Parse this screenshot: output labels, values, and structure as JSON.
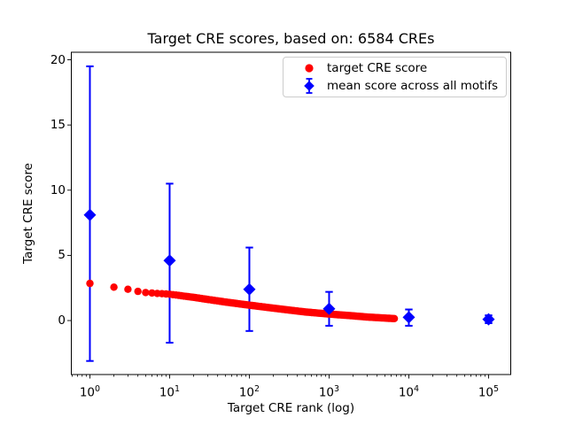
{
  "figure": {
    "background": "#ffffff",
    "text_color": "#000000"
  },
  "chart_data": {
    "type": "scatter",
    "title": "Target CRE scores, based on: 6584 CREs",
    "xlabel": "Target CRE rank (log)",
    "ylabel": "Target CRE score",
    "x_scale": "log",
    "grid": false,
    "n_cres": 6584,
    "xlim_log10": [
      -0.233,
      5.278
    ],
    "ylim": [
      -4.14,
      20.58
    ],
    "y_ticks": [
      0,
      5,
      10,
      15,
      20
    ],
    "x_tick_labels": [
      {
        "base": "10",
        "exp": "0"
      },
      {
        "base": "10",
        "exp": "1"
      },
      {
        "base": "10",
        "exp": "2"
      },
      {
        "base": "10",
        "exp": "3"
      },
      {
        "base": "10",
        "exp": "4"
      },
      {
        "base": "10",
        "exp": "5"
      }
    ],
    "legend": {
      "position": "upper right",
      "entries": [
        "target CRE score",
        "mean score across all motifs"
      ]
    },
    "series": [
      {
        "name": "target CRE score",
        "marker": "circle",
        "color": "#ff0000",
        "n_points": 6584,
        "points_log_anchors": [
          [
            1,
            2.85
          ],
          [
            2,
            2.56
          ],
          [
            3,
            2.4
          ],
          [
            4,
            2.24
          ],
          [
            5,
            2.15
          ],
          [
            7,
            2.08
          ],
          [
            10,
            2.02
          ],
          [
            20,
            1.78
          ],
          [
            30,
            1.62
          ],
          [
            50,
            1.42
          ],
          [
            100,
            1.18
          ],
          [
            200,
            0.95
          ],
          [
            300,
            0.82
          ],
          [
            500,
            0.66
          ],
          [
            1000,
            0.5
          ],
          [
            2000,
            0.36
          ],
          [
            3000,
            0.27
          ],
          [
            5000,
            0.19
          ],
          [
            6584,
            0.15
          ]
        ]
      },
      {
        "name": "mean score across all motifs",
        "marker": "diamond",
        "color": "#0000ff",
        "points": [
          {
            "x": 1,
            "y": 8.1,
            "lo": -3.1,
            "hi": 19.5
          },
          {
            "x": 10,
            "y": 4.6,
            "lo": -1.7,
            "hi": 10.5
          },
          {
            "x": 100,
            "y": 2.4,
            "lo": -0.8,
            "hi": 5.6
          },
          {
            "x": 1000,
            "y": 0.9,
            "lo": -0.4,
            "hi": 2.2
          },
          {
            "x": 10000,
            "y": 0.25,
            "lo": -0.4,
            "hi": 0.85
          },
          {
            "x": 100000,
            "y": 0.1,
            "lo": -0.2,
            "hi": 0.4
          }
        ]
      }
    ]
  }
}
